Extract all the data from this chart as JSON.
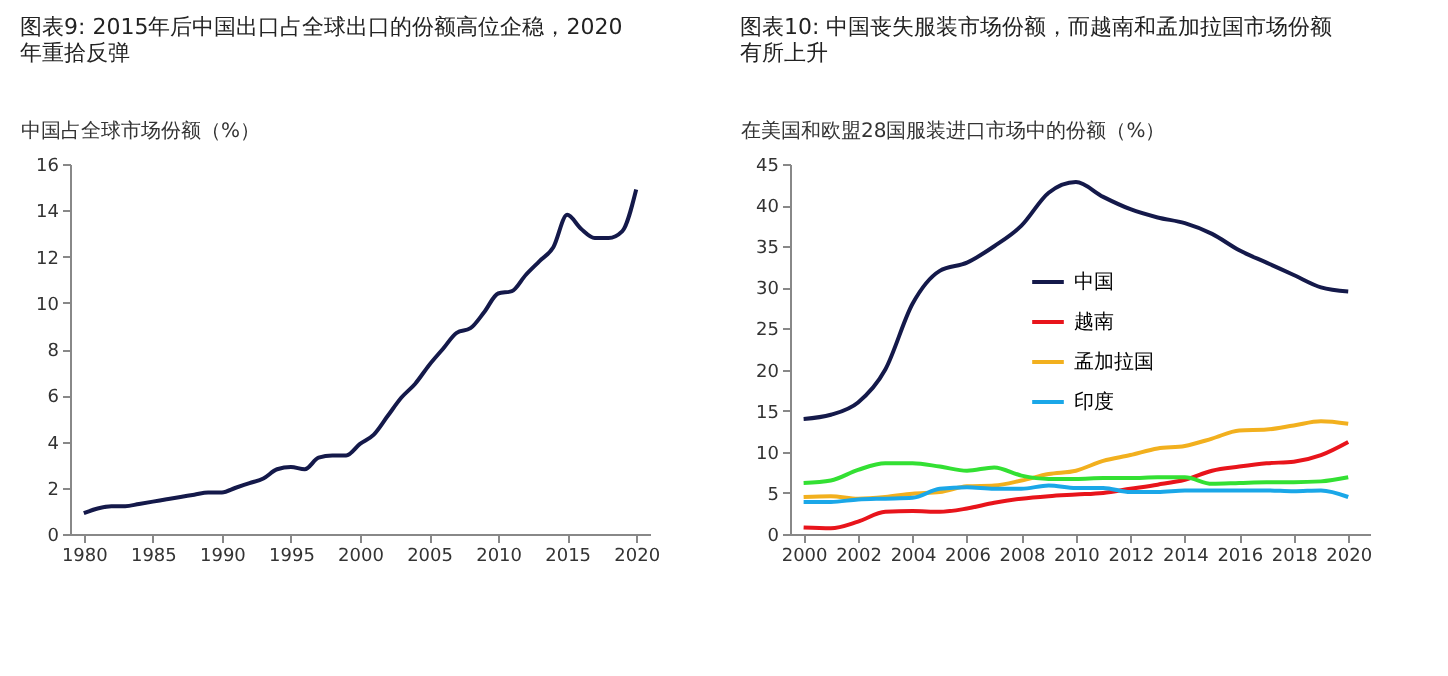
{
  "chart_data": [
    {
      "type": "line",
      "title": "图表9: 2015年后中国出口占全球出口的份额高位企稳，2020年重拾反弹",
      "ylabel": "中国占全球市场份额（%）",
      "x": [
        1980,
        1981,
        1982,
        1983,
        1984,
        1985,
        1986,
        1987,
        1988,
        1989,
        1990,
        1991,
        1992,
        1993,
        1994,
        1995,
        1996,
        1997,
        1998,
        1999,
        2000,
        2001,
        2002,
        2003,
        2004,
        2005,
        2006,
        2007,
        2008,
        2009,
        2010,
        2011,
        2012,
        2013,
        2014,
        2015,
        2016,
        2017,
        2018,
        2019,
        2020
      ],
      "xlim": [
        1979,
        2021
      ],
      "xticks": [
        1980,
        1985,
        1990,
        1995,
        2000,
        2005,
        2010,
        2015,
        2020
      ],
      "ylim": [
        0,
        16
      ],
      "yticks": [
        0,
        2,
        4,
        6,
        8,
        10,
        12,
        14,
        16
      ],
      "grid": false,
      "legend": false,
      "series": [
        {
          "color": "#14194a",
          "values": [
            0.9,
            1.1,
            1.2,
            1.2,
            1.3,
            1.4,
            1.5,
            1.6,
            1.7,
            1.8,
            1.8,
            2.0,
            2.2,
            2.4,
            2.8,
            2.9,
            2.8,
            3.3,
            3.4,
            3.4,
            3.9,
            4.3,
            5.1,
            5.9,
            6.5,
            7.3,
            8.0,
            8.7,
            8.9,
            9.6,
            10.4,
            10.5,
            11.2,
            11.8,
            12.4,
            13.8,
            13.2,
            12.8,
            12.8,
            13.1,
            14.9
          ]
        }
      ]
    },
    {
      "type": "line",
      "title": "图表10: 中国丧失服装市场份额，而越南和孟加拉国市场份额有所上升",
      "ylabel": "在美国和欧盟28国服装进口市场中的份额（%）",
      "x": [
        2000,
        2001,
        2002,
        2003,
        2004,
        2005,
        2006,
        2007,
        2008,
        2009,
        2010,
        2011,
        2012,
        2013,
        2014,
        2015,
        2016,
        2017,
        2018,
        2019,
        2020
      ],
      "xlim": [
        1999.5,
        2020.8
      ],
      "xticks": [
        2000,
        2002,
        2004,
        2006,
        2008,
        2010,
        2012,
        2014,
        2016,
        2018,
        2020
      ],
      "ylim": [
        0,
        45
      ],
      "yticks": [
        0,
        5,
        10,
        15,
        20,
        25,
        30,
        35,
        40,
        45
      ],
      "grid": false,
      "legend": "right",
      "series": [
        {
          "name": "中国",
          "color": "#14194a",
          "values": [
            14,
            14.5,
            16,
            20,
            28,
            32,
            33,
            35,
            37.5,
            41.5,
            42.8,
            41,
            39.5,
            38.5,
            37.8,
            36.5,
            34.5,
            33,
            31.5,
            30,
            29.5
          ]
        },
        {
          "name": "越南",
          "color": "#e8141b",
          "values": [
            0.8,
            0.7,
            1.5,
            2.7,
            2.8,
            2.7,
            3.1,
            3.8,
            4.3,
            4.6,
            4.8,
            5.0,
            5.5,
            6.0,
            6.6,
            7.7,
            8.2,
            8.6,
            8.8,
            9.6,
            11.2
          ]
        },
        {
          "name": "孟加拉国",
          "color": "#f2b01e",
          "values": [
            4.5,
            4.6,
            4.3,
            4.5,
            4.9,
            5.1,
            5.8,
            5.9,
            6.5,
            7.3,
            7.7,
            8.9,
            9.6,
            10.4,
            10.7,
            11.6,
            12.6,
            12.7,
            13.2,
            13.7,
            13.4
          ]
        },
        {
          "color": "#33e033",
          "values": [
            6.2,
            6.5,
            7.8,
            8.6,
            8.6,
            8.2,
            7.7,
            8.1,
            7.1,
            6.7,
            6.7,
            6.8,
            6.8,
            6.9,
            6.9,
            6.1,
            6.2,
            6.3,
            6.3,
            6.4,
            6.9
          ]
        },
        {
          "name": "印度",
          "color": "#1aa7e8",
          "values": [
            3.9,
            3.9,
            4.2,
            4.3,
            4.4,
            5.5,
            5.7,
            5.5,
            5.5,
            5.9,
            5.6,
            5.6,
            5.1,
            5.1,
            5.3,
            5.3,
            5.3,
            5.3,
            5.2,
            5.3,
            4.5
          ]
        }
      ]
    }
  ]
}
